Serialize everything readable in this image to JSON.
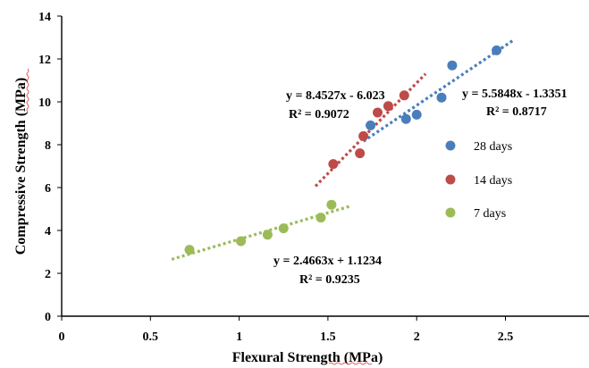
{
  "chart_data": {
    "type": "scatter",
    "xlabel": "Flexural Strength (MPa)",
    "ylabel": "Compressive Strength (MPa)",
    "xlim": [
      0,
      3
    ],
    "ylim": [
      0,
      14
    ],
    "x_ticks": [
      "0",
      "0.5",
      "1",
      "1.5",
      "2",
      "2.5"
    ],
    "y_ticks": [
      "0",
      "2",
      "4",
      "6",
      "8",
      "10",
      "12",
      "14"
    ],
    "grid": false,
    "legend_position": "right",
    "series": [
      {
        "name": "28 days",
        "color": "#4a7ebb",
        "points": [
          [
            1.74,
            8.9
          ],
          [
            1.94,
            9.2
          ],
          [
            2.0,
            9.4
          ],
          [
            2.14,
            10.2
          ],
          [
            2.2,
            11.7
          ],
          [
            2.45,
            12.4
          ]
        ],
        "trendline": {
          "slope": 5.5848,
          "intercept": -1.3351,
          "x_range": [
            1.7,
            2.55
          ]
        },
        "equation": "y = 5.5848x - 1.3351",
        "r2": "R² = 0.8717"
      },
      {
        "name": "14 days",
        "color": "#be4b48",
        "points": [
          [
            1.53,
            7.1
          ],
          [
            1.68,
            7.6
          ],
          [
            1.7,
            8.4
          ],
          [
            1.78,
            9.5
          ],
          [
            1.84,
            9.8
          ],
          [
            1.93,
            10.3
          ]
        ],
        "trendline": {
          "slope": 8.4527,
          "intercept": -6.023,
          "x_range": [
            1.43,
            2.05
          ]
        },
        "equation": "y = 8.4527x - 6.023",
        "r2": "R² = 0.9072"
      },
      {
        "name": "7 days",
        "color": "#9bbb59",
        "points": [
          [
            0.72,
            3.1
          ],
          [
            1.01,
            3.5
          ],
          [
            1.16,
            3.8
          ],
          [
            1.25,
            4.1
          ],
          [
            1.46,
            4.6
          ],
          [
            1.52,
            5.2
          ]
        ],
        "trendline": {
          "slope": 2.4663,
          "intercept": 1.1234,
          "x_range": [
            0.62,
            1.62
          ]
        },
        "equation": "y = 2.4663x + 1.1234",
        "r2": "R² = 0.9235"
      }
    ]
  }
}
